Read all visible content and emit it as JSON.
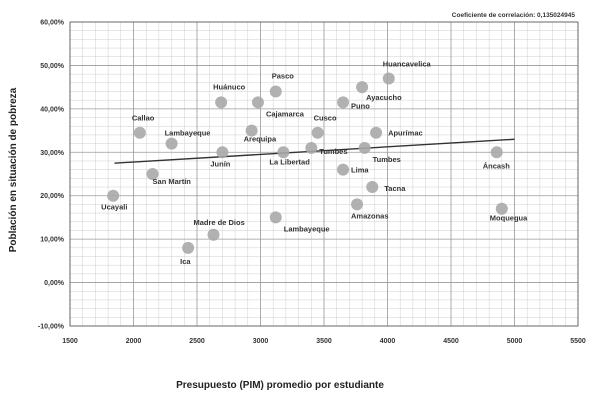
{
  "chart_data": {
    "type": "scatter",
    "title": "",
    "annotation": "Coeficiente de correlación: 0,135024945",
    "xlabel": "Presupuesto (PIM) promedio por estudiante",
    "ylabel": "Población en situación de pobreza",
    "xlim": [
      1500,
      5500
    ],
    "ylim": [
      -0.1,
      0.6
    ],
    "x_ticks": [
      "1500",
      "2000",
      "2500",
      "3000",
      "3500",
      "4000",
      "4500",
      "5000",
      "5500"
    ],
    "y_ticks": [
      "-10,00%",
      "0,00%",
      "10,00%",
      "20,00%",
      "30,00%",
      "40,00%",
      "50,00%",
      "60,00%"
    ],
    "grid": true,
    "marker_color": "#a9a9a9",
    "line_color": "#333333",
    "trendline": {
      "x": [
        1850,
        5000
      ],
      "y": [
        0.275,
        0.33
      ]
    },
    "points": [
      {
        "label": "Ucayali",
        "x": 1840,
        "y": 0.2
      },
      {
        "label": "Callao",
        "x": 2050,
        "y": 0.345
      },
      {
        "label": "San Martín",
        "x": 2150,
        "y": 0.25
      },
      {
        "label": "Lambayeque",
        "x": 2300,
        "y": 0.32
      },
      {
        "label": "Ica",
        "x": 2430,
        "y": 0.08
      },
      {
        "label": "Madre de Dios",
        "x": 2630,
        "y": 0.11
      },
      {
        "label": "Junín",
        "x": 2700,
        "y": 0.3
      },
      {
        "label": "Huánuco",
        "x": 2690,
        "y": 0.415
      },
      {
        "label": "Arequipa",
        "x": 2930,
        "y": 0.35
      },
      {
        "label": "Cajamarca",
        "x": 2980,
        "y": 0.415
      },
      {
        "label": "Pasco",
        "x": 3120,
        "y": 0.44
      },
      {
        "label": "La Libertad",
        "x": 3180,
        "y": 0.3
      },
      {
        "label": "Lambayeque",
        "x": 3120,
        "y": 0.15
      },
      {
        "label": "Cusco",
        "x": 3450,
        "y": 0.345
      },
      {
        "label": "Tumbes",
        "x": 3400,
        "y": 0.31
      },
      {
        "label": "Lima",
        "x": 3650,
        "y": 0.26
      },
      {
        "label": "Puno",
        "x": 3650,
        "y": 0.415
      },
      {
        "label": "Ayacucho",
        "x": 3800,
        "y": 0.45
      },
      {
        "label": "Huancavelica",
        "x": 4010,
        "y": 0.47
      },
      {
        "label": "Apurímac",
        "x": 3910,
        "y": 0.345
      },
      {
        "label": "Tumbes",
        "x": 3820,
        "y": 0.31
      },
      {
        "label": "Tacna",
        "x": 3880,
        "y": 0.22
      },
      {
        "label": "Amazonas",
        "x": 3760,
        "y": 0.18
      },
      {
        "label": "Áncash",
        "x": 4860,
        "y": 0.3
      },
      {
        "label": "Moquegua",
        "x": 4900,
        "y": 0.17
      }
    ]
  }
}
